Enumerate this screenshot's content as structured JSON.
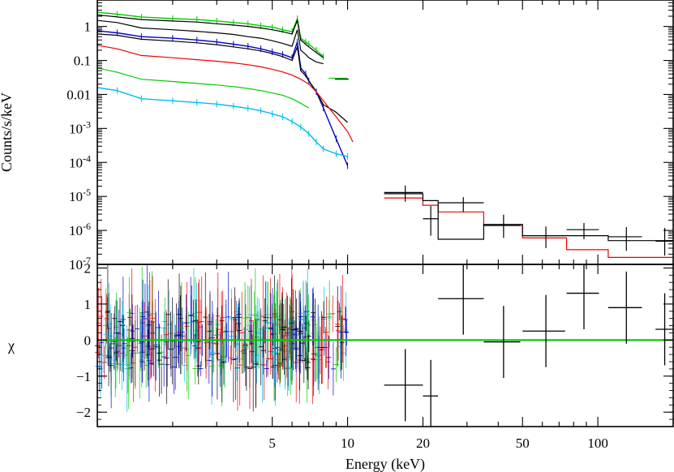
{
  "figure": {
    "xlabel": "Energy (keV)",
    "xscale": "log",
    "xlim": [
      1.0,
      200
    ],
    "xticks_major": [
      5,
      10,
      20,
      50,
      100
    ],
    "xtick_labels": [
      "5",
      "10",
      "20",
      "50",
      "100"
    ]
  },
  "chart_data": [
    {
      "type": "line",
      "panel": "spectrum",
      "ylabel": "Counts/s/keV",
      "yscale": "log",
      "ylim": [
        1e-07,
        6
      ],
      "ytick_labels": [
        "1",
        "0.1",
        "0.01",
        "10-3",
        "10-4",
        "10-5",
        "10-6",
        "10-7"
      ],
      "ytick_values": [
        1,
        0.1,
        0.01,
        0.001,
        0.0001,
        1e-05,
        1e-06,
        1e-07
      ],
      "series": [
        {
          "color": "#00cc00",
          "kind": "data",
          "x": [
            1.0,
            1.2,
            1.5,
            2.0,
            2.5,
            3.0,
            3.5,
            4.0,
            4.5,
            5.0,
            5.5,
            6.0,
            6.3,
            6.5,
            6.8,
            7.0,
            7.5,
            8.0
          ],
          "y": [
            2.6,
            2.3,
            1.9,
            1.7,
            1.6,
            1.45,
            1.3,
            1.2,
            1.05,
            0.95,
            0.8,
            0.7,
            1.7,
            0.45,
            0.35,
            0.3,
            0.2,
            0.13
          ]
        },
        {
          "color": "#000000",
          "kind": "model",
          "x": [
            1.0,
            1.2,
            1.5,
            2.0,
            2.5,
            3.0,
            3.5,
            4.0,
            4.5,
            5.0,
            5.5,
            6.0,
            6.3,
            6.5,
            6.8,
            7.0,
            7.5,
            8.0
          ],
          "y": [
            2.2,
            1.9,
            1.6,
            1.45,
            1.35,
            1.2,
            1.1,
            1.0,
            0.9,
            0.8,
            0.7,
            0.6,
            1.5,
            0.4,
            0.3,
            0.25,
            0.17,
            0.12
          ]
        },
        {
          "color": "#000000",
          "kind": "model",
          "x": [
            1.0,
            1.2,
            1.5,
            2.0,
            2.5,
            3.0,
            3.5,
            4.0,
            4.5,
            5.0,
            5.5,
            6.0,
            6.3,
            6.5,
            6.8,
            7.0,
            7.5,
            8.0
          ],
          "y": [
            1.5,
            1.3,
            0.9,
            0.8,
            0.72,
            0.65,
            0.58,
            0.5,
            0.45,
            0.38,
            0.32,
            0.26,
            0.8,
            0.2,
            0.15,
            0.12,
            0.09,
            0.08
          ]
        },
        {
          "color": "#0000cc",
          "kind": "data",
          "x": [
            1.0,
            1.2,
            1.5,
            2.0,
            2.5,
            3.0,
            3.5,
            4.0,
            4.5,
            5.0,
            5.5,
            6.0,
            6.3,
            6.5,
            6.8,
            7.0,
            7.5,
            8.0,
            9.0,
            10.0
          ],
          "y": [
            0.75,
            0.65,
            0.5,
            0.45,
            0.4,
            0.35,
            0.3,
            0.26,
            0.22,
            0.18,
            0.15,
            0.12,
            0.35,
            0.06,
            0.04,
            0.025,
            0.012,
            0.004,
            0.0005,
            8e-05
          ]
        },
        {
          "color": "#000000",
          "kind": "model",
          "x": [
            1.0,
            1.2,
            1.5,
            2.0,
            2.5,
            3.0,
            3.5,
            4.0,
            4.5,
            5.0,
            5.5,
            6.0,
            6.3,
            6.5,
            6.8,
            7.0,
            7.5,
            8.0,
            9.0,
            10.0
          ],
          "y": [
            0.6,
            0.55,
            0.42,
            0.37,
            0.33,
            0.29,
            0.25,
            0.22,
            0.19,
            0.16,
            0.13,
            0.1,
            0.25,
            0.05,
            0.035,
            0.025,
            0.012,
            0.005,
            0.003,
            0.0015
          ]
        },
        {
          "color": "#ee0000",
          "kind": "model",
          "x": [
            1.0,
            1.2,
            1.5,
            2.0,
            2.5,
            3.0,
            3.5,
            4.0,
            4.5,
            5.0,
            5.5,
            6.0,
            6.5,
            7.0,
            7.5,
            8.0,
            9.0,
            10.0,
            10.5
          ],
          "y": [
            0.28,
            0.22,
            0.14,
            0.12,
            0.105,
            0.095,
            0.085,
            0.075,
            0.065,
            0.055,
            0.046,
            0.037,
            0.028,
            0.02,
            0.012,
            0.0065,
            0.0022,
            0.0008,
            0.0004
          ]
        },
        {
          "color": "#00cc00",
          "kind": "model",
          "x": [
            1.0,
            1.2,
            1.5,
            2.0,
            2.5,
            3.0,
            3.5,
            4.0,
            4.5,
            5.0,
            5.5,
            6.0,
            6.5,
            7.0
          ],
          "y": [
            0.06,
            0.045,
            0.028,
            0.024,
            0.021,
            0.019,
            0.017,
            0.015,
            0.013,
            0.011,
            0.0095,
            0.0075,
            0.0055,
            0.004
          ]
        },
        {
          "color": "#00bbee",
          "kind": "data",
          "x": [
            1.0,
            1.2,
            1.5,
            2.0,
            2.5,
            3.0,
            3.5,
            4.0,
            4.5,
            5.0,
            5.5,
            6.0,
            6.5,
            7.0,
            7.5,
            8.0,
            9.0,
            10.0
          ],
          "y": [
            0.016,
            0.013,
            0.0075,
            0.0065,
            0.0058,
            0.0052,
            0.0045,
            0.0039,
            0.0033,
            0.0027,
            0.0022,
            0.0016,
            0.0011,
            0.0007,
            0.0004,
            0.00025,
            0.00018,
            0.00015
          ]
        },
        {
          "color": "#ee0000",
          "kind": "step",
          "x": [
            14,
            20,
            20,
            23,
            23,
            35,
            35,
            50,
            50,
            75,
            75,
            110,
            110,
            160,
            160,
            200
          ],
          "y": [
            9e-06,
            9e-06,
            5.5e-06,
            5.5e-06,
            3.5e-06,
            3.5e-06,
            1.4e-06,
            1.4e-06,
            6e-07,
            6e-07,
            2.7e-07,
            2.7e-07,
            1.6e-07,
            1.6e-07,
            1.6e-07,
            1.6e-07
          ]
        },
        {
          "color": "#000000",
          "kind": "step",
          "x": [
            14,
            20,
            20,
            23,
            23,
            35,
            35,
            50,
            50,
            75,
            75,
            110,
            110,
            200
          ],
          "y": [
            1.2e-05,
            1.2e-05,
            7.5e-06,
            7.5e-06,
            5.5e-07,
            5.5e-07,
            1.5e-06,
            1.5e-06,
            7e-07,
            7e-07,
            7e-07,
            7e-07,
            5e-07,
            5e-07
          ]
        }
      ],
      "points": [
        {
          "x": 9.5,
          "y": 0.028,
          "xerr": 0.6,
          "yerr_lo": 0.0,
          "yerr_hi": 0.0,
          "color": "#000000"
        },
        {
          "x": 9.2,
          "y": 0.03,
          "xerr": 0.8,
          "yerr_lo": 0.0,
          "yerr_hi": 0.0,
          "color": "#00cc00"
        },
        {
          "x": 17,
          "y": 1.3e-05,
          "xerr": 3,
          "yerr_lo": 6e-06,
          "yerr_hi": 8e-06,
          "color": "#000000"
        },
        {
          "x": 21.5,
          "y": 2.2e-06,
          "xerr": 1.5,
          "yerr_lo": 1.5e-06,
          "yerr_hi": 3e-06,
          "color": "#000000"
        },
        {
          "x": 29,
          "y": 6.5e-06,
          "xerr": 6,
          "yerr_lo": 3e-06,
          "yerr_hi": 3e-06,
          "color": "#000000"
        },
        {
          "x": 42,
          "y": 1.4e-06,
          "xerr": 7,
          "yerr_lo": 8e-07,
          "yerr_hi": 1.5e-06,
          "color": "#000000"
        },
        {
          "x": 62,
          "y": 7e-07,
          "xerr": 12,
          "yerr_lo": 4e-07,
          "yerr_hi": 6e-07,
          "color": "#000000"
        },
        {
          "x": 88,
          "y": 1.05e-06,
          "xerr": 13,
          "yerr_lo": 5e-07,
          "yerr_hi": 6e-07,
          "color": "#000000"
        },
        {
          "x": 130,
          "y": 6.5e-07,
          "xerr": 20,
          "yerr_lo": 4e-07,
          "yerr_hi": 6e-07,
          "color": "#000000"
        },
        {
          "x": 185,
          "y": 4.8e-07,
          "xerr": 15,
          "yerr_lo": 3e-07,
          "yerr_hi": 7e-07,
          "color": "#000000"
        }
      ]
    },
    {
      "type": "scatter",
      "panel": "residuals",
      "ylabel": "χ",
      "yscale": "linear",
      "ylim": [
        -2.4,
        2.1
      ],
      "yticks": [
        -2,
        -1,
        0,
        1,
        2
      ],
      "ytick_labels": [
        "−2",
        "−1",
        "0",
        "1",
        "2"
      ],
      "zero_line_color": "#00cc00",
      "noise_band": {
        "x_range": [
          1.0,
          10.0
        ],
        "amplitude": 2.2,
        "colors": [
          "#00cc00",
          "#0000cc",
          "#00bbee",
          "#000000",
          "#ee0000"
        ]
      },
      "points": [
        {
          "x": 17,
          "y": -1.25,
          "xerr": 3,
          "yerr": 1.0,
          "color": "#000000"
        },
        {
          "x": 21.5,
          "y": -1.55,
          "xerr": 1.5,
          "yerr": 1.0,
          "color": "#000000"
        },
        {
          "x": 29,
          "y": 1.15,
          "xerr": 6,
          "yerr": 1.0,
          "color": "#000000"
        },
        {
          "x": 42,
          "y": -0.05,
          "xerr": 7,
          "yerr": 1.0,
          "color": "#000000"
        },
        {
          "x": 62,
          "y": 0.25,
          "xerr": 12,
          "yerr": 1.0,
          "color": "#000000"
        },
        {
          "x": 88,
          "y": 1.3,
          "xerr": 13,
          "yerr": 1.0,
          "color": "#000000"
        },
        {
          "x": 130,
          "y": 0.9,
          "xerr": 20,
          "yerr": 1.0,
          "color": "#000000"
        },
        {
          "x": 185,
          "y": 0.3,
          "xerr": 15,
          "yerr": 1.0,
          "color": "#000000"
        }
      ]
    }
  ]
}
